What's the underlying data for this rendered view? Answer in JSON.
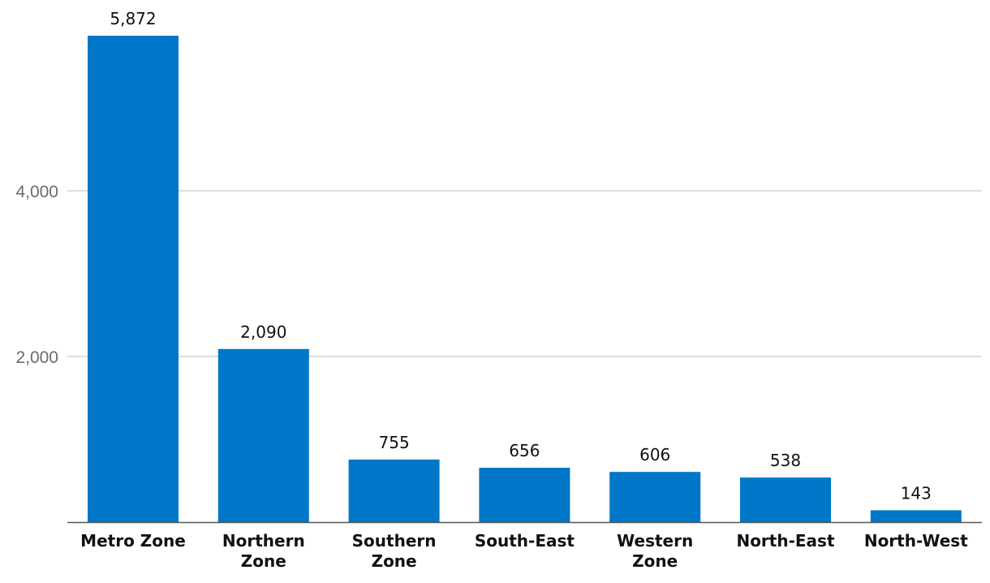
{
  "chart_data": {
    "type": "bar",
    "categories": [
      [
        "Metro Zone"
      ],
      [
        "Northern",
        "Zone"
      ],
      [
        "Southern",
        "Zone"
      ],
      [
        "South-East"
      ],
      [
        "Western",
        "Zone"
      ],
      [
        "North-East"
      ],
      [
        "North-West"
      ]
    ],
    "values": [
      5872,
      2090,
      755,
      656,
      606,
      538,
      143
    ],
    "value_labels": [
      "5,872",
      "2,090",
      "755",
      "656",
      "606",
      "538",
      "143"
    ],
    "yticks": [
      {
        "value": 2000,
        "label": "2,000"
      },
      {
        "value": 4000,
        "label": "4,000"
      }
    ],
    "ylim": [
      0,
      6000
    ],
    "grid": true,
    "bar_color": "#0077c8",
    "title": "",
    "xlabel": "",
    "ylabel": ""
  }
}
